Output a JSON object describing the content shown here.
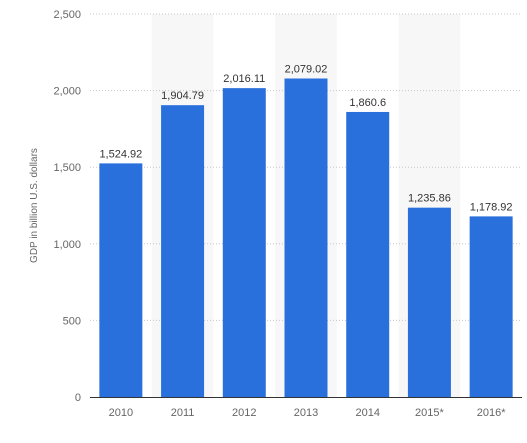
{
  "chart_data": {
    "type": "bar",
    "title": "",
    "xlabel": "",
    "ylabel": "GDP in billion U.S. dollars",
    "categories": [
      "2010",
      "2011",
      "2012",
      "2013",
      "2014",
      "2015*",
      "2016*"
    ],
    "values": [
      1524.92,
      1904.79,
      2016.11,
      2079.02,
      1860.6,
      1235.86,
      1178.92
    ],
    "data_labels": [
      "1,524.92",
      "1,904.79",
      "2,016.11",
      "2,079.02",
      "1,860.6",
      "1,235.86",
      "1,178.92"
    ],
    "ylim": [
      0,
      2500
    ],
    "yticks": [
      0,
      500,
      1000,
      1500,
      2000,
      2500
    ],
    "ytick_labels": [
      "0",
      "500",
      "1,000",
      "1,500",
      "2,000",
      "2,500"
    ],
    "grid": true,
    "legend": "none",
    "colors": {
      "bar": "#2a70dc",
      "band": "#f7f7f7",
      "grid": "#c8c8c8",
      "axis": "#333333"
    }
  }
}
